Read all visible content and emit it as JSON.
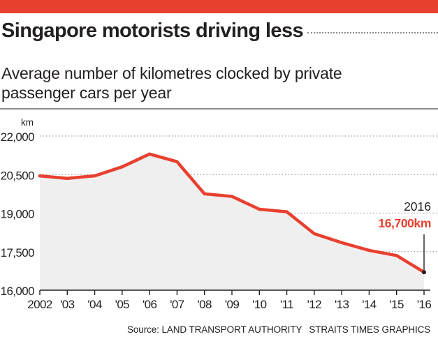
{
  "header": {
    "title": "Singapore motorists driving less",
    "subtitle": "Average number of kilometres clocked by private passenger cars per year"
  },
  "colors": {
    "banner": "#e8402f",
    "line": "#e8402f",
    "area": "#efeff0",
    "axis": "#231f20",
    "grid_dots": "#9d9d9d"
  },
  "chart_data": {
    "type": "line",
    "title": "Singapore motorists driving less",
    "subtitle": "Average number of kilometres clocked by private passenger cars per year",
    "ylabel": "km",
    "xlabel": "",
    "ylim": [
      16000,
      22000
    ],
    "yticks": [
      16000,
      17500,
      19000,
      20500,
      22000
    ],
    "ytick_labels": [
      "16,000",
      "17,500",
      "19,000",
      "20,500",
      "22,000"
    ],
    "x": [
      2002,
      2003,
      2004,
      2005,
      2006,
      2007,
      2008,
      2009,
      2010,
      2011,
      2012,
      2013,
      2014,
      2015,
      2016
    ],
    "xtick_labels": [
      "2002",
      "'03",
      "'04",
      "'05",
      "'06",
      "'07",
      "'08",
      "'09",
      "'10",
      "'11",
      "'12",
      "'13",
      "'14",
      "'15",
      "'16"
    ],
    "series": [
      {
        "values": [
          20450,
          20350,
          20450,
          20800,
          21300,
          21000,
          19750,
          19650,
          19150,
          19050,
          18200,
          17850,
          17550,
          17350,
          16700
        ]
      }
    ],
    "area_fill": true,
    "grid": "horizontal dotted",
    "annotation": {
      "x": 2016,
      "year_label": "2016",
      "value_label": "16,700km"
    }
  },
  "footer": {
    "source": "Source: LAND TRANSPORT AUTHORITY",
    "credit": "STRAITS TIMES GRAPHICS"
  }
}
